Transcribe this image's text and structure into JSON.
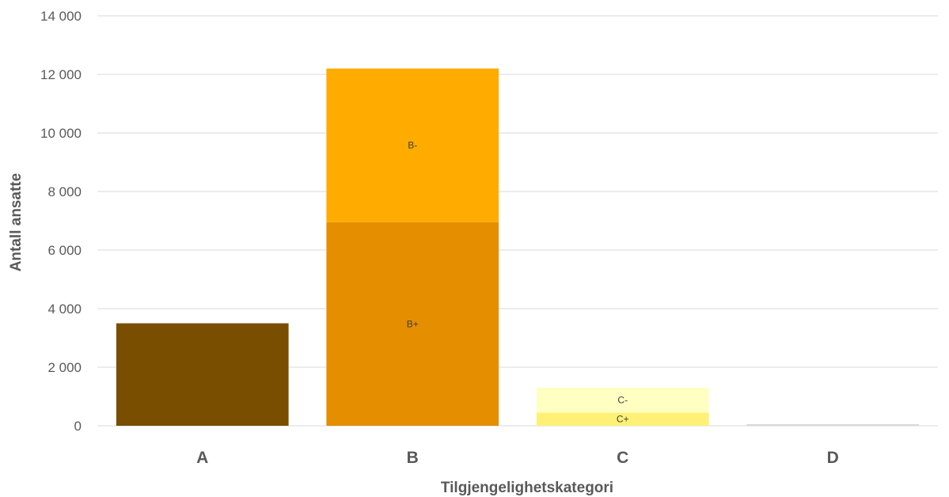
{
  "chart_data": {
    "type": "bar",
    "stacked": true,
    "title": "",
    "xlabel": "Tilgjengelighetskategori",
    "ylabel": "Antall ansatte",
    "ylim": [
      0,
      14000
    ],
    "yticks": [
      0,
      2000,
      4000,
      6000,
      8000,
      10000,
      12000,
      14000
    ],
    "ytick_labels": [
      "0",
      "2 000",
      "4 000",
      "6 000",
      "8 000",
      "10 000",
      "12 000",
      "14 000"
    ],
    "categories": [
      "A",
      "B",
      "C",
      "D"
    ],
    "grid": true,
    "legend": "none",
    "segments": [
      {
        "category": "A",
        "label": "",
        "value": 3500,
        "color": "#7a4e00"
      },
      {
        "category": "B",
        "label": "B+",
        "value": 6950,
        "color": "#e58e00"
      },
      {
        "category": "B",
        "label": "B-",
        "value": 5250,
        "color": "#ffab00"
      },
      {
        "category": "C",
        "label": "C+",
        "value": 450,
        "color": "#fff176"
      },
      {
        "category": "C",
        "label": "C-",
        "value": 850,
        "color": "#ffffc2"
      },
      {
        "category": "D",
        "label": "",
        "value": 50,
        "color": "#d9d9d9"
      }
    ]
  }
}
